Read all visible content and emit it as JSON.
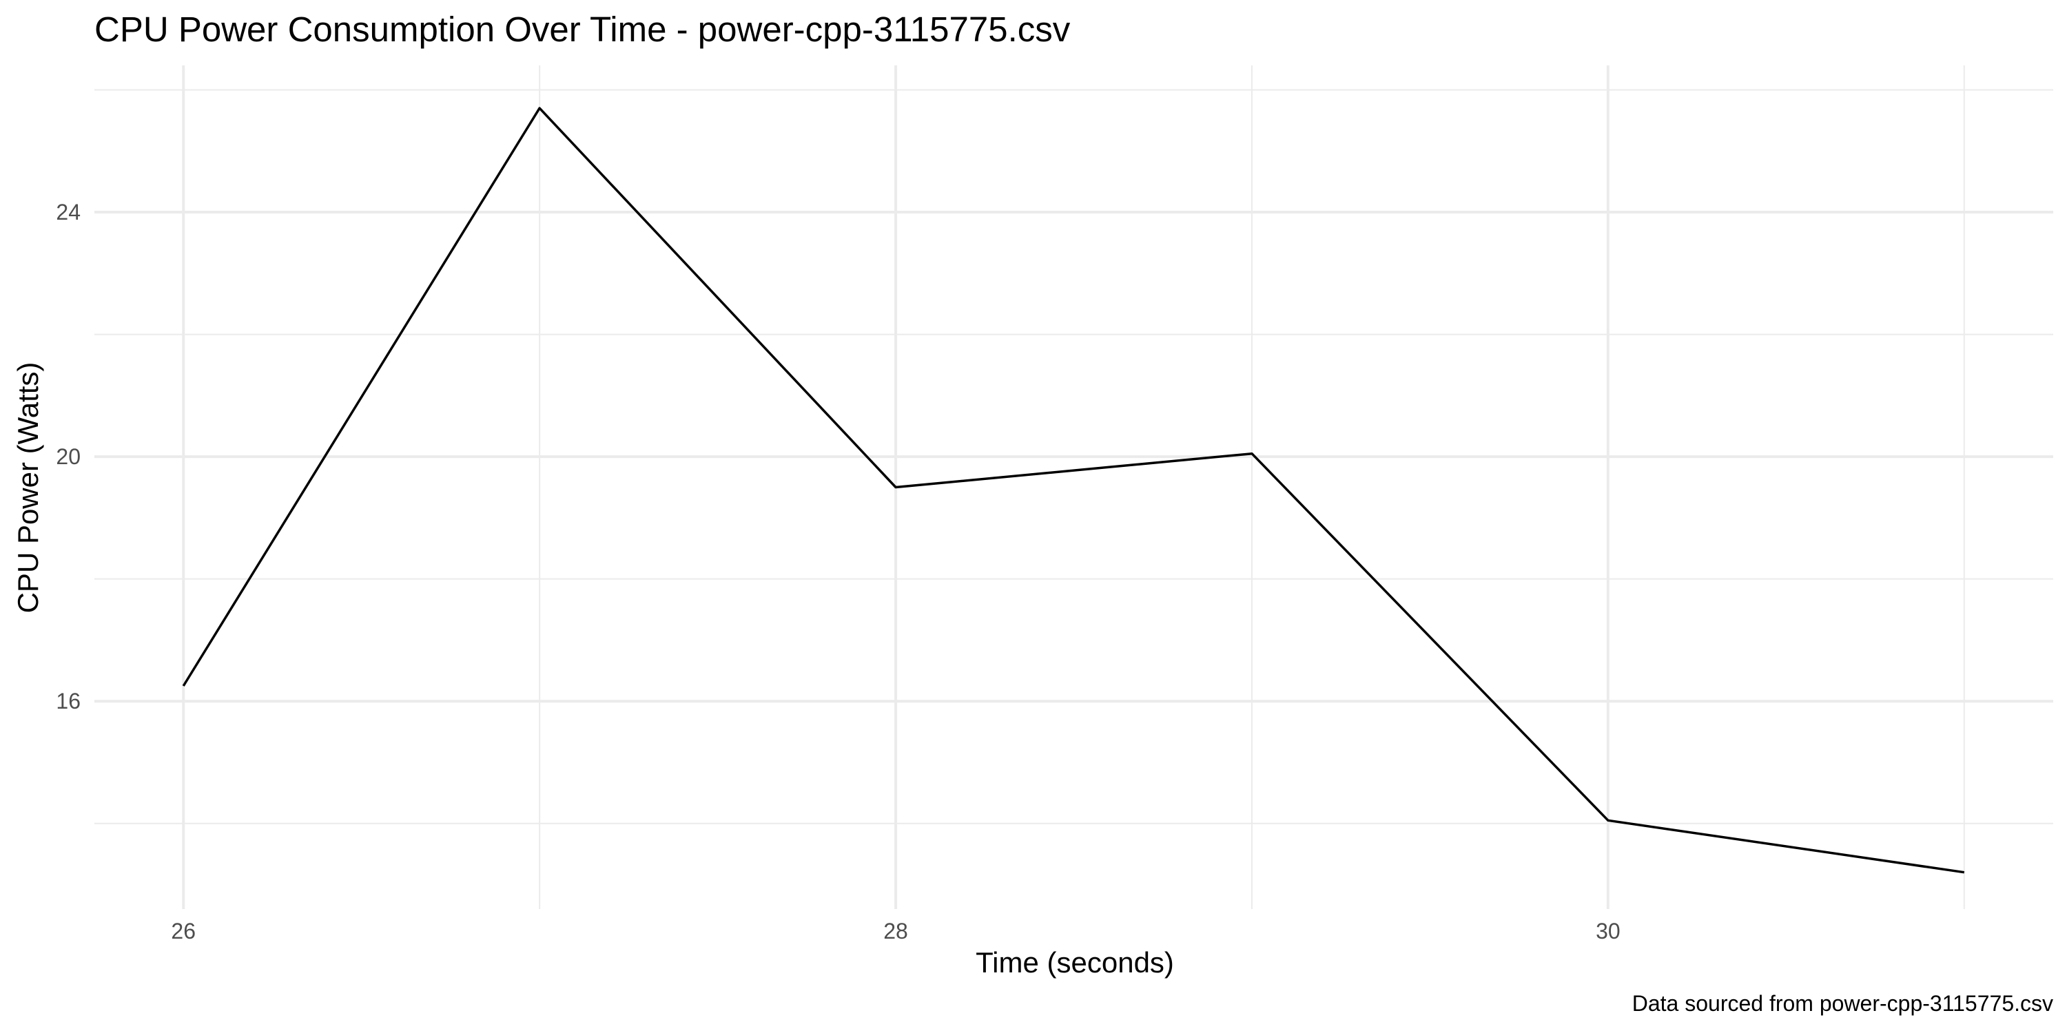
{
  "chart_data": {
    "type": "line",
    "title": "CPU Power Consumption Over Time - power-cpp-3115775.csv",
    "xlabel": "Time (seconds)",
    "ylabel": "CPU Power (Watts)",
    "caption": "Data sourced from power-cpp-3115775.csv",
    "x": [
      26,
      27,
      28,
      29,
      30,
      31
    ],
    "values": [
      16.25,
      25.7,
      19.5,
      20.05,
      14.05,
      13.2
    ],
    "xlim": [
      25.75,
      31.25
    ],
    "ylim": [
      12.6,
      26.4
    ],
    "x_ticks": [
      26,
      28,
      30
    ],
    "x_tick_labels": [
      "26",
      "28",
      "30"
    ],
    "x_minor_ticks": [
      27,
      29,
      31
    ],
    "y_ticks": [
      16,
      20,
      24
    ],
    "y_tick_labels": [
      "16",
      "20",
      "24"
    ],
    "y_minor_ticks": [
      14,
      18,
      22,
      26
    ],
    "grid": true,
    "legend": "none",
    "line_color": "#000000"
  }
}
